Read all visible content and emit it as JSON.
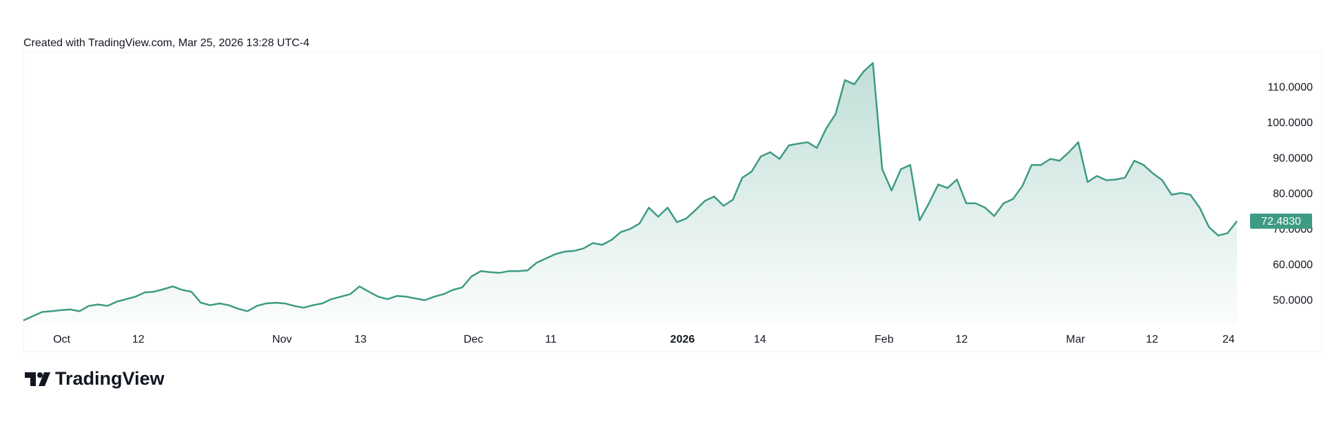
{
  "header": "Created with TradingView.com, Mar 25, 2026 13:28 UTC-4",
  "logo": "TradingView",
  "chart_data": {
    "type": "area",
    "color": "#3d9a83",
    "values": [
      44.5,
      45.7,
      46.9,
      47.1,
      47.4,
      47.6,
      47.1,
      48.6,
      49.0,
      48.6,
      49.8,
      50.5,
      51.2,
      52.4,
      52.6,
      53.3,
      54.1,
      53.1,
      52.6,
      49.5,
      48.8,
      49.3,
      48.8,
      47.8,
      47.1,
      48.6,
      49.3,
      49.5,
      49.3,
      48.6,
      48.1,
      48.8,
      49.3,
      50.5,
      51.2,
      51.9,
      54.1,
      52.6,
      51.2,
      50.5,
      51.4,
      51.2,
      50.7,
      50.2,
      51.2,
      51.9,
      53.1,
      53.8,
      56.9,
      58.4,
      58.1,
      57.9,
      58.4,
      58.4,
      58.6,
      60.8,
      62.0,
      63.2,
      63.9,
      64.1,
      64.8,
      66.3,
      65.8,
      67.2,
      69.4,
      70.3,
      71.8,
      76.3,
      73.7,
      76.3,
      72.2,
      73.2,
      75.6,
      78.2,
      79.4,
      76.8,
      78.5,
      84.7,
      86.4,
      90.7,
      91.9,
      90.0,
      93.8,
      94.3,
      94.7,
      93.1,
      98.6,
      102.6,
      112.2,
      111.0,
      114.6,
      117.0,
      87.1,
      81.1,
      87.1,
      88.3,
      72.7,
      77.5,
      82.8,
      81.8,
      84.2,
      77.5,
      77.5,
      76.3,
      73.9,
      77.5,
      78.7,
      82.3,
      88.3,
      88.3,
      90.0,
      89.5,
      91.9,
      94.7,
      83.5,
      85.2,
      84.0,
      84.2,
      84.7,
      89.5,
      88.3,
      85.9,
      84.0,
      79.9,
      80.4,
      79.9,
      76.3,
      70.8,
      68.4,
      69.1,
      72.483
    ],
    "last_value_label": "72.4830",
    "xlim": [
      0,
      130
    ],
    "xticks": [
      {
        "value": 4.1,
        "label": "Oct"
      },
      {
        "value": 12.3,
        "label": "12"
      },
      {
        "value": 27.7,
        "label": "Nov"
      },
      {
        "value": 36.1,
        "label": "13"
      },
      {
        "value": 48.2,
        "label": "Dec"
      },
      {
        "value": 56.5,
        "label": "11"
      },
      {
        "value": 70.6,
        "label": "2026"
      },
      {
        "value": 78.9,
        "label": "14"
      },
      {
        "value": 92.2,
        "label": "Feb"
      },
      {
        "value": 100.5,
        "label": "12"
      },
      {
        "value": 112.7,
        "label": "Mar"
      },
      {
        "value": 120.9,
        "label": "12"
      },
      {
        "value": 129.1,
        "label": "24"
      }
    ],
    "ylim": [
      43.3,
      120
    ],
    "yticks": [
      {
        "value": 50,
        "label": "50.0000"
      },
      {
        "value": 60,
        "label": "60.0000"
      },
      {
        "value": 70,
        "label": "70.0000"
      },
      {
        "value": 80,
        "label": "80.0000"
      },
      {
        "value": 90,
        "label": "90.0000"
      },
      {
        "value": 100,
        "label": "100.0000"
      },
      {
        "value": 110,
        "label": "110.0000"
      }
    ],
    "grid": false
  }
}
